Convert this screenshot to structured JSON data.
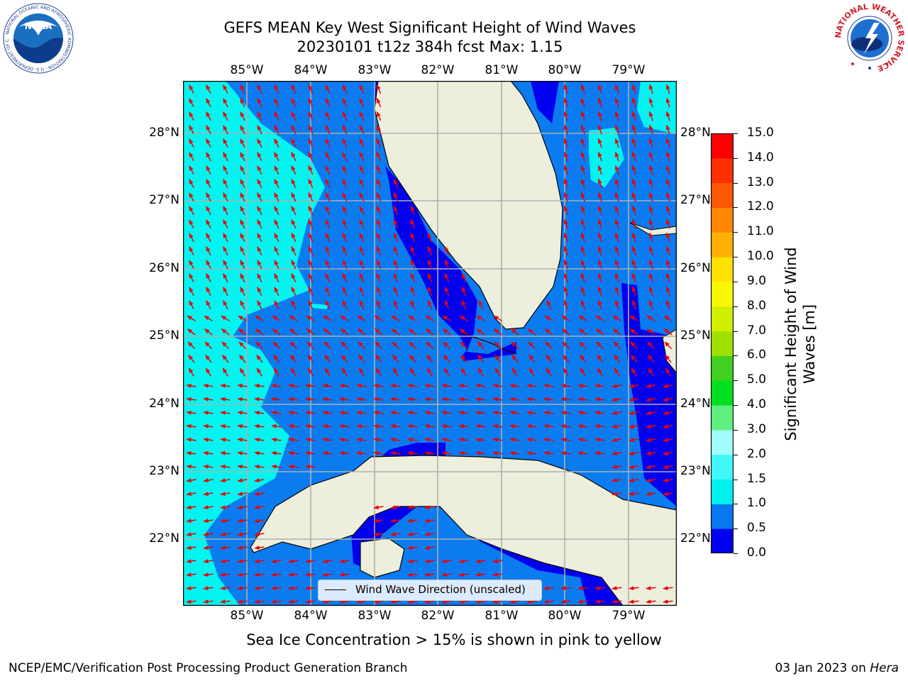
{
  "header": {
    "title_line1": "GEFS MEAN Key West Significant Height of Wind Waves",
    "title_line2": "20230101 t12z 384h fcst   Max: 1.15"
  },
  "logos": {
    "noaa_text": "NOAA",
    "noaa_ring_text": "NATIONAL OCEANIC AND ATMOSPHERIC ADMINISTRATION · U.S. DEPARTMENT OF COMMERCE",
    "nws_ring_text": "NATIONAL WEATHER SERVICE"
  },
  "map": {
    "lon_labels": [
      "85°W",
      "84°W",
      "83°W",
      "82°W",
      "81°W",
      "80°W",
      "79°W"
    ],
    "lat_labels": [
      "28°N",
      "27°N",
      "26°N",
      "25°N",
      "24°N",
      "23°N",
      "22°N"
    ],
    "legend_label": "Wind Wave Direction (unscaled)",
    "colors": {
      "water_deep_blue": "#0000ee",
      "water_blue": "#0a7cf0",
      "water_cyan": "#00f5f0",
      "land": "#eeeedc",
      "arrow": "#ee0000",
      "grid": "#b0b0b0"
    }
  },
  "colorbar": {
    "label": "Significant Height of Wind Waves [m]",
    "ticks": [
      "0.0",
      "0.5",
      "1.0",
      "1.5",
      "2.0",
      "3.0",
      "4.0",
      "5.0",
      "6.0",
      "7.0",
      "8.0",
      "9.0",
      "10.0",
      "11.0",
      "12.0",
      "13.0",
      "14.0",
      "15.0"
    ],
    "colors": [
      "#0000f0",
      "#0a78f0",
      "#00f0f0",
      "#40f8f8",
      "#a0fcfc",
      "#60f080",
      "#00e020",
      "#40d020",
      "#a0e000",
      "#d0f000",
      "#f8f800",
      "#ffe000",
      "#ffb000",
      "#ff8800",
      "#ff5800",
      "#ff3000",
      "#ff0000"
    ]
  },
  "footer": {
    "ice_note": "Sea Ice Concentration > 15% is shown in pink to yellow",
    "branch": "NCEP/EMC/Verification Post Processing Product Generation Branch",
    "date": "03 Jan 2023 on ",
    "host": "Hera"
  }
}
